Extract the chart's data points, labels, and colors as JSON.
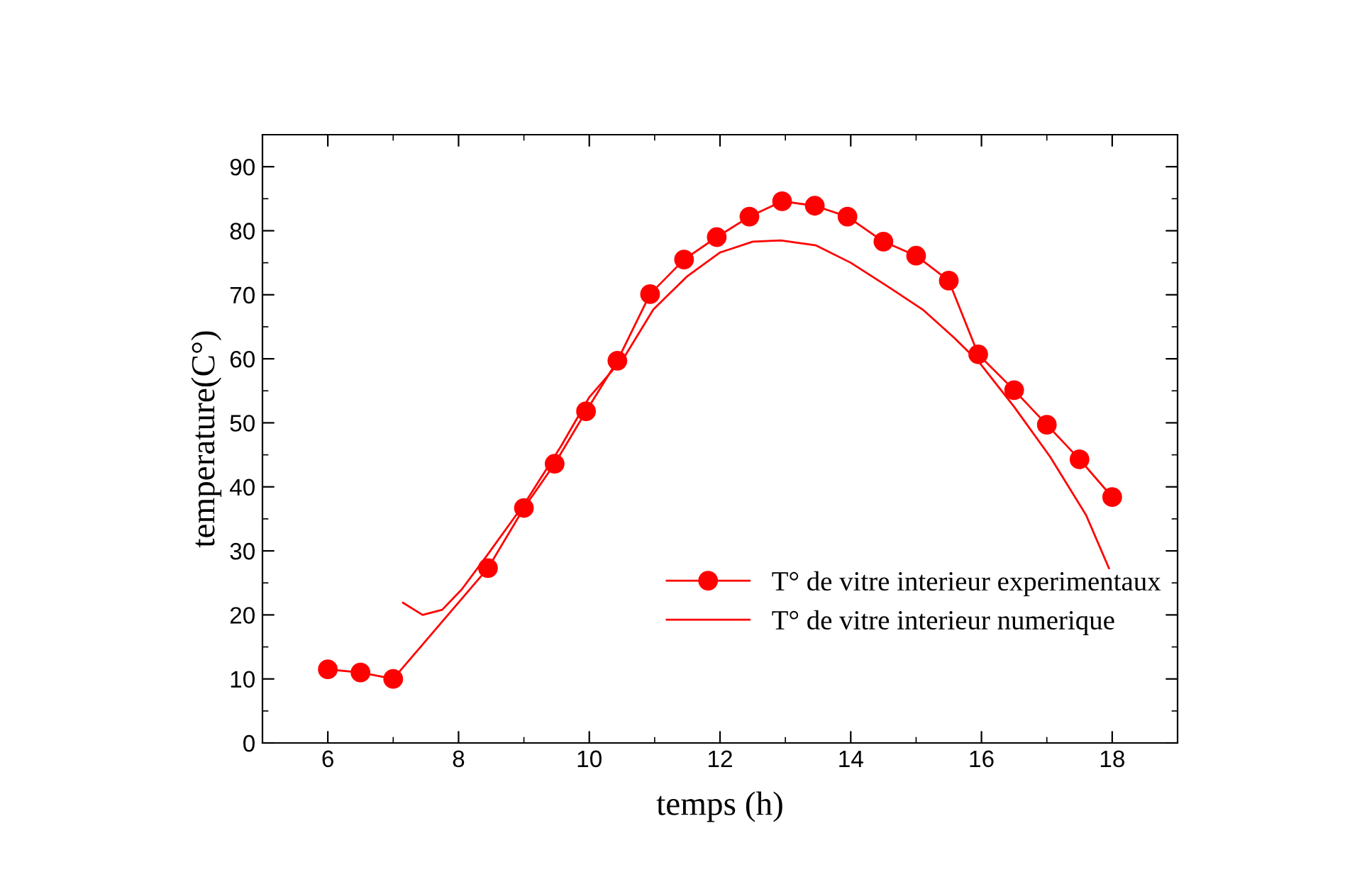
{
  "chart_data": {
    "type": "line",
    "xlabel": "temps (h)",
    "ylabel": "temperature(C°)",
    "xlim": [
      5,
      19
    ],
    "ylim": [
      0,
      95
    ],
    "xticks": [
      6,
      8,
      10,
      12,
      14,
      16,
      18
    ],
    "yticks": [
      0,
      10,
      20,
      30,
      40,
      50,
      60,
      70,
      80,
      90
    ],
    "grid": false,
    "legend": "lower right",
    "series": [
      {
        "name": "T° de vitre interieur experimentaux",
        "color": "#ff0000",
        "marker": "circle",
        "x": [
          6,
          6.5,
          7,
          8.45,
          9,
          9.47,
          9.95,
          10.43,
          10.93,
          11.45,
          11.95,
          12.45,
          12.95,
          13.45,
          13.95,
          14.5,
          15,
          15.5,
          15.95,
          16.5,
          17,
          17.5,
          18
        ],
        "values": [
          11.5,
          11,
          10,
          27.3,
          36.7,
          43.6,
          51.8,
          59.7,
          70.1,
          75.5,
          79,
          82.2,
          84.6,
          83.9,
          82.2,
          78.3,
          76.1,
          72.2,
          60.7,
          55.1,
          49.7,
          44.3,
          38.4
        ]
      },
      {
        "name": "T° de vitre interieur numerique",
        "color": "#ff0000",
        "marker": "none",
        "x": [
          7.15,
          7.45,
          7.75,
          8.05,
          8.45,
          9.03,
          9.57,
          10,
          10.55,
          10.98,
          11.5,
          12,
          12.5,
          12.93,
          13.47,
          14,
          14.55,
          15.1,
          15.58,
          15.97,
          16.5,
          17.05,
          17.6,
          17.95
        ],
        "values": [
          21.9,
          20,
          20.8,
          24,
          29.5,
          37.7,
          46.4,
          54,
          60.5,
          67.7,
          72.9,
          76.6,
          78.3,
          78.5,
          77.7,
          75,
          71.4,
          67.7,
          63.3,
          59.4,
          52.5,
          44.7,
          35.6,
          27.3
        ]
      }
    ]
  }
}
